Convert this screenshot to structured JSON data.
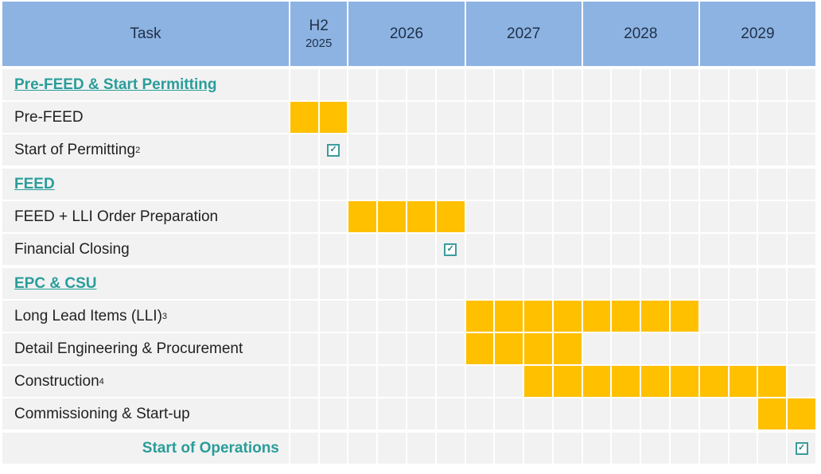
{
  "chart_data": {
    "type": "gantt",
    "task_header": "Task",
    "periods": [
      {
        "label": "H2",
        "sub": "2025",
        "quarters": 2
      },
      {
        "label": "2026",
        "quarters": 4
      },
      {
        "label": "2027",
        "quarters": 4
      },
      {
        "label": "2028",
        "quarters": 4
      },
      {
        "label": "2029",
        "quarters": 4
      }
    ],
    "rows": [
      {
        "label": "Pre-FEED & Start Permitting",
        "type": "section"
      },
      {
        "label": "Pre-FEED",
        "type": "task",
        "start": 0,
        "end": 1
      },
      {
        "label": "Start of Permitting",
        "sup": "2",
        "type": "milestone",
        "at": 1
      },
      {
        "label": "FEED",
        "type": "section"
      },
      {
        "label": "FEED + LLI Order Preparation",
        "type": "task",
        "start": 2,
        "end": 5
      },
      {
        "label": "Financial Closing",
        "type": "milestone",
        "at": 5
      },
      {
        "label": "EPC & CSU",
        "type": "section"
      },
      {
        "label": "Long Lead Items (LLI)",
        "sup": "3",
        "type": "task",
        "start": 6,
        "end": 13
      },
      {
        "label": "Detail Engineering & Procurement",
        "type": "task",
        "start": 6,
        "end": 9
      },
      {
        "label": "Construction",
        "sup": "4",
        "type": "task",
        "start": 8,
        "end": 16
      },
      {
        "label": "Commissioning & Start-up",
        "type": "task",
        "start": 16,
        "end": 17
      },
      {
        "label": "Start of Operations",
        "type": "final",
        "at": 17
      }
    ],
    "colors": {
      "header": "#8db3e2",
      "bar": "#ffc000",
      "section_text": "#2a9d9a"
    }
  }
}
